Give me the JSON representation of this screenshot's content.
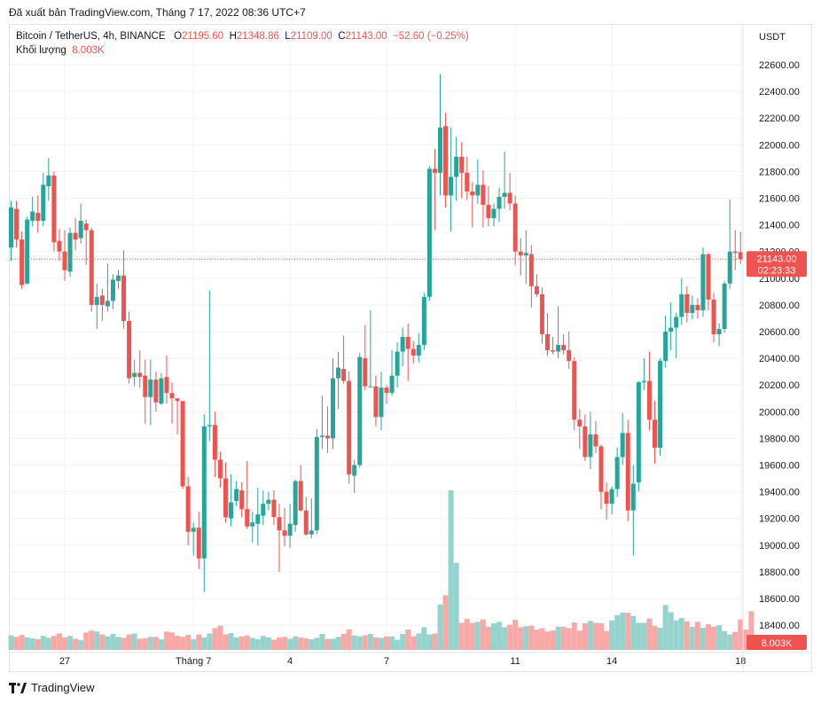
{
  "header": {
    "export_text": "Đã xuất bản TradingView.com, Tháng 7 17, 2022 08:36 UTC+7"
  },
  "legend": {
    "symbol": "Bitcoin / TetherUS, 4h, BINANCE",
    "o_label": "O",
    "o_value": "21195.60",
    "h_label": "H",
    "h_value": "21348.86",
    "l_label": "L",
    "l_value": "21109.00",
    "c_label": "C",
    "c_value": "21143.00",
    "change": "−52.60 (−0.25%)",
    "volume_label": "Khối lượng",
    "volume_value": "8.003K"
  },
  "footer": {
    "brand": "TradingView",
    "logo": "tradingview-logo-icon"
  },
  "colors": {
    "up": "#26a69a",
    "down": "#ef5350",
    "up_volume": "#97d3cd",
    "down_volume": "#f7a9a7",
    "grid": "#f0f3fa",
    "axis_text": "#131722",
    "price_label_bg": "#ef5350"
  },
  "chart_data": {
    "type": "candlestick",
    "symbol": "BTCUSDT",
    "interval": "4h",
    "currency": "USDT",
    "y_ticks": [
      "22600.00",
      "22400.00",
      "22200.00",
      "22000.00",
      "21800.00",
      "21600.00",
      "21400.00",
      "21200.00",
      "21000.00",
      "20800.00",
      "20600.00",
      "20400.00",
      "20200.00",
      "20000.00",
      "19800.00",
      "19600.00",
      "19400.00",
      "19200.00",
      "19000.00",
      "18800.00",
      "18600.00",
      "18400.00"
    ],
    "ylim": [
      18250,
      22790
    ],
    "x_ticks": [
      {
        "label": "27",
        "index": 10
      },
      {
        "label": "Tháng 7",
        "index": 34
      },
      {
        "label": "4",
        "index": 52
      },
      {
        "label": "7",
        "index": 70
      },
      {
        "label": "11",
        "index": 94
      },
      {
        "label": "14",
        "index": 112
      },
      {
        "label": "18",
        "index": 136
      }
    ],
    "last_price_label": "21143.00",
    "countdown_label": "02:23:33",
    "volume_label": "8.003K",
    "grid": true,
    "candles": [
      {
        "o": 21230,
        "h": 21580,
        "l": 21130,
        "c": 21530
      },
      {
        "o": 21520,
        "h": 21580,
        "l": 21230,
        "c": 21290
      },
      {
        "o": 21290,
        "h": 21350,
        "l": 20920,
        "c": 20950
      },
      {
        "o": 20960,
        "h": 21460,
        "l": 20950,
        "c": 21440
      },
      {
        "o": 21430,
        "h": 21610,
        "l": 21390,
        "c": 21500
      },
      {
        "o": 21490,
        "h": 21620,
        "l": 21340,
        "c": 21430
      },
      {
        "o": 21430,
        "h": 21790,
        "l": 21390,
        "c": 21700
      },
      {
        "o": 21690,
        "h": 21900,
        "l": 21580,
        "c": 21770
      },
      {
        "o": 21770,
        "h": 21800,
        "l": 21200,
        "c": 21270
      },
      {
        "o": 21280,
        "h": 21370,
        "l": 21130,
        "c": 21200
      },
      {
        "o": 21200,
        "h": 21360,
        "l": 20980,
        "c": 21060
      },
      {
        "o": 21050,
        "h": 21380,
        "l": 21010,
        "c": 21340
      },
      {
        "o": 21340,
        "h": 21450,
        "l": 21210,
        "c": 21290
      },
      {
        "o": 21300,
        "h": 21560,
        "l": 21260,
        "c": 21430
      },
      {
        "o": 21410,
        "h": 21440,
        "l": 21100,
        "c": 21360
      },
      {
        "o": 21360,
        "h": 21380,
        "l": 20750,
        "c": 20800
      },
      {
        "o": 20800,
        "h": 20960,
        "l": 20620,
        "c": 20860
      },
      {
        "o": 20870,
        "h": 20920,
        "l": 20680,
        "c": 20800
      },
      {
        "o": 20790,
        "h": 21110,
        "l": 20750,
        "c": 20830
      },
      {
        "o": 20830,
        "h": 21030,
        "l": 20770,
        "c": 20990
      },
      {
        "o": 20980,
        "h": 21060,
        "l": 20920,
        "c": 21020
      },
      {
        "o": 21020,
        "h": 21210,
        "l": 20620,
        "c": 20680
      },
      {
        "o": 20680,
        "h": 20750,
        "l": 20210,
        "c": 20250
      },
      {
        "o": 20260,
        "h": 20390,
        "l": 20190,
        "c": 20290
      },
      {
        "o": 20290,
        "h": 20460,
        "l": 20180,
        "c": 20260
      },
      {
        "o": 20270,
        "h": 20390,
        "l": 19910,
        "c": 20110
      },
      {
        "o": 20110,
        "h": 20390,
        "l": 19900,
        "c": 20240
      },
      {
        "o": 20240,
        "h": 20300,
        "l": 20000,
        "c": 20070
      },
      {
        "o": 20060,
        "h": 20290,
        "l": 20050,
        "c": 20250
      },
      {
        "o": 20260,
        "h": 20420,
        "l": 20060,
        "c": 20140
      },
      {
        "o": 20140,
        "h": 20220,
        "l": 19910,
        "c": 20100
      },
      {
        "o": 20100,
        "h": 20100,
        "l": 19830,
        "c": 20080
      },
      {
        "o": 20080,
        "h": 20080,
        "l": 19420,
        "c": 19440
      },
      {
        "o": 19440,
        "h": 19510,
        "l": 19000,
        "c": 19100
      },
      {
        "o": 19100,
        "h": 19170,
        "l": 18920,
        "c": 19130
      },
      {
        "o": 19130,
        "h": 19250,
        "l": 18820,
        "c": 18900
      },
      {
        "o": 18900,
        "h": 19980,
        "l": 18650,
        "c": 19890
      },
      {
        "o": 19890,
        "h": 20910,
        "l": 19780,
        "c": 19900
      },
      {
        "o": 19900,
        "h": 20000,
        "l": 19510,
        "c": 19640
      },
      {
        "o": 19640,
        "h": 19700,
        "l": 19430,
        "c": 19500
      },
      {
        "o": 19500,
        "h": 19620,
        "l": 19170,
        "c": 19210
      },
      {
        "o": 19200,
        "h": 19530,
        "l": 19140,
        "c": 19320
      },
      {
        "o": 19330,
        "h": 19480,
        "l": 19290,
        "c": 19420
      },
      {
        "o": 19410,
        "h": 19470,
        "l": 19210,
        "c": 19270
      },
      {
        "o": 19270,
        "h": 19630,
        "l": 19120,
        "c": 19140
      },
      {
        "o": 19140,
        "h": 19250,
        "l": 19020,
        "c": 19170
      },
      {
        "o": 19160,
        "h": 19430,
        "l": 19000,
        "c": 19230
      },
      {
        "o": 19220,
        "h": 19410,
        "l": 19150,
        "c": 19310
      },
      {
        "o": 19310,
        "h": 19400,
        "l": 19260,
        "c": 19340
      },
      {
        "o": 19340,
        "h": 19410,
        "l": 19150,
        "c": 19210
      },
      {
        "o": 19210,
        "h": 19310,
        "l": 18800,
        "c": 19110
      },
      {
        "o": 19110,
        "h": 19280,
        "l": 18990,
        "c": 19070
      },
      {
        "o": 19070,
        "h": 19310,
        "l": 18980,
        "c": 19160
      },
      {
        "o": 19150,
        "h": 19490,
        "l": 19100,
        "c": 19480
      },
      {
        "o": 19480,
        "h": 19600,
        "l": 19250,
        "c": 19260
      },
      {
        "o": 19260,
        "h": 19360,
        "l": 19070,
        "c": 19080
      },
      {
        "o": 19080,
        "h": 19350,
        "l": 19050,
        "c": 19110
      },
      {
        "o": 19110,
        "h": 19870,
        "l": 19080,
        "c": 19810
      },
      {
        "o": 19810,
        "h": 20120,
        "l": 19720,
        "c": 19820
      },
      {
        "o": 19820,
        "h": 20040,
        "l": 19690,
        "c": 19800
      },
      {
        "o": 19800,
        "h": 20400,
        "l": 19720,
        "c": 20250
      },
      {
        "o": 20250,
        "h": 20450,
        "l": 20020,
        "c": 20330
      },
      {
        "o": 20320,
        "h": 20570,
        "l": 20210,
        "c": 20230
      },
      {
        "o": 20230,
        "h": 20300,
        "l": 19460,
        "c": 19530
      },
      {
        "o": 19520,
        "h": 19640,
        "l": 19390,
        "c": 19600
      },
      {
        "o": 19600,
        "h": 20440,
        "l": 19580,
        "c": 20410
      },
      {
        "o": 20400,
        "h": 20650,
        "l": 20160,
        "c": 20190
      },
      {
        "o": 20190,
        "h": 20760,
        "l": 20180,
        "c": 20190
      },
      {
        "o": 20190,
        "h": 20270,
        "l": 19890,
        "c": 19960
      },
      {
        "o": 19960,
        "h": 20300,
        "l": 19860,
        "c": 20180
      },
      {
        "o": 20180,
        "h": 20200,
        "l": 20060,
        "c": 20140
      },
      {
        "o": 20140,
        "h": 20460,
        "l": 20120,
        "c": 20270
      },
      {
        "o": 20270,
        "h": 20520,
        "l": 20180,
        "c": 20450
      },
      {
        "o": 20450,
        "h": 20630,
        "l": 20340,
        "c": 20560
      },
      {
        "o": 20560,
        "h": 20660,
        "l": 20230,
        "c": 20470
      },
      {
        "o": 20470,
        "h": 20530,
        "l": 20360,
        "c": 20420
      },
      {
        "o": 20420,
        "h": 20590,
        "l": 20370,
        "c": 20500
      },
      {
        "o": 20500,
        "h": 20890,
        "l": 20460,
        "c": 20860
      },
      {
        "o": 20860,
        "h": 21840,
        "l": 20830,
        "c": 21820
      },
      {
        "o": 21820,
        "h": 21970,
        "l": 21360,
        "c": 21790
      },
      {
        "o": 21790,
        "h": 22530,
        "l": 21620,
        "c": 22130
      },
      {
        "o": 22140,
        "h": 22240,
        "l": 21530,
        "c": 21620
      },
      {
        "o": 21620,
        "h": 22130,
        "l": 21350,
        "c": 21760
      },
      {
        "o": 21760,
        "h": 22060,
        "l": 21580,
        "c": 21910
      },
      {
        "o": 21910,
        "h": 22020,
        "l": 21600,
        "c": 21790
      },
      {
        "o": 21790,
        "h": 21910,
        "l": 21590,
        "c": 21650
      },
      {
        "o": 21650,
        "h": 21720,
        "l": 21380,
        "c": 21620
      },
      {
        "o": 21620,
        "h": 21890,
        "l": 21560,
        "c": 21700
      },
      {
        "o": 21700,
        "h": 21810,
        "l": 21380,
        "c": 21550
      },
      {
        "o": 21550,
        "h": 21690,
        "l": 21390,
        "c": 21450
      },
      {
        "o": 21450,
        "h": 21560,
        "l": 21390,
        "c": 21520
      },
      {
        "o": 21520,
        "h": 21680,
        "l": 21420,
        "c": 21610
      },
      {
        "o": 21610,
        "h": 21950,
        "l": 21520,
        "c": 21640
      },
      {
        "o": 21640,
        "h": 21790,
        "l": 21510,
        "c": 21560
      },
      {
        "o": 21560,
        "h": 21620,
        "l": 21100,
        "c": 21200
      },
      {
        "o": 21200,
        "h": 21300,
        "l": 21020,
        "c": 21170
      },
      {
        "o": 21170,
        "h": 21360,
        "l": 20960,
        "c": 21190
      },
      {
        "o": 21180,
        "h": 21250,
        "l": 20780,
        "c": 20940
      },
      {
        "o": 20940,
        "h": 21030,
        "l": 20860,
        "c": 20880
      },
      {
        "o": 20880,
        "h": 20930,
        "l": 20510,
        "c": 20580
      },
      {
        "o": 20580,
        "h": 20740,
        "l": 20420,
        "c": 20460
      },
      {
        "o": 20460,
        "h": 20560,
        "l": 20430,
        "c": 20450
      },
      {
        "o": 20450,
        "h": 20790,
        "l": 20400,
        "c": 20500
      },
      {
        "o": 20500,
        "h": 20580,
        "l": 20430,
        "c": 20460
      },
      {
        "o": 20460,
        "h": 20600,
        "l": 20320,
        "c": 20380
      },
      {
        "o": 20380,
        "h": 20410,
        "l": 19860,
        "c": 19940
      },
      {
        "o": 19940,
        "h": 20020,
        "l": 19720,
        "c": 19890
      },
      {
        "o": 19890,
        "h": 19980,
        "l": 19630,
        "c": 19660
      },
      {
        "o": 19660,
        "h": 20000,
        "l": 19570,
        "c": 19830
      },
      {
        "o": 19830,
        "h": 19930,
        "l": 19690,
        "c": 19740
      },
      {
        "o": 19740,
        "h": 19750,
        "l": 19270,
        "c": 19400
      },
      {
        "o": 19400,
        "h": 19470,
        "l": 19190,
        "c": 19310
      },
      {
        "o": 19310,
        "h": 19440,
        "l": 19230,
        "c": 19420
      },
      {
        "o": 19420,
        "h": 19730,
        "l": 19360,
        "c": 19660
      },
      {
        "o": 19660,
        "h": 19990,
        "l": 19600,
        "c": 19840
      },
      {
        "o": 19840,
        "h": 19940,
        "l": 19180,
        "c": 19260
      },
      {
        "o": 19260,
        "h": 19600,
        "l": 18920,
        "c": 19460
      },
      {
        "o": 19470,
        "h": 20230,
        "l": 19400,
        "c": 20220
      },
      {
        "o": 20220,
        "h": 20400,
        "l": 20160,
        "c": 20230
      },
      {
        "o": 20230,
        "h": 20450,
        "l": 19860,
        "c": 19940
      },
      {
        "o": 19940,
        "h": 20080,
        "l": 19610,
        "c": 19730
      },
      {
        "o": 19730,
        "h": 20400,
        "l": 19670,
        "c": 20380
      },
      {
        "o": 20380,
        "h": 20720,
        "l": 20330,
        "c": 20600
      },
      {
        "o": 20600,
        "h": 20820,
        "l": 20460,
        "c": 20630
      },
      {
        "o": 20630,
        "h": 20740,
        "l": 20400,
        "c": 20710
      },
      {
        "o": 20710,
        "h": 21000,
        "l": 20650,
        "c": 20880
      },
      {
        "o": 20880,
        "h": 20940,
        "l": 20670,
        "c": 20740
      },
      {
        "o": 20740,
        "h": 20870,
        "l": 20690,
        "c": 20800
      },
      {
        "o": 20800,
        "h": 20850,
        "l": 20700,
        "c": 20760
      },
      {
        "o": 20760,
        "h": 21230,
        "l": 20710,
        "c": 21180
      },
      {
        "o": 21180,
        "h": 21190,
        "l": 20760,
        "c": 20840
      },
      {
        "o": 20840,
        "h": 20890,
        "l": 20520,
        "c": 20580
      },
      {
        "o": 20580,
        "h": 20660,
        "l": 20490,
        "c": 20620
      },
      {
        "o": 20620,
        "h": 20980,
        "l": 20590,
        "c": 20960
      },
      {
        "o": 20960,
        "h": 21590,
        "l": 20920,
        "c": 21200
      },
      {
        "o": 21200,
        "h": 21360,
        "l": 21060,
        "c": 21190
      },
      {
        "o": 21195.6,
        "h": 21348.86,
        "l": 21109,
        "c": 21143
      }
    ],
    "volumes": [
      3.0,
      2.7,
      3.1,
      2.6,
      2.4,
      2.2,
      2.9,
      2.5,
      2.9,
      3.4,
      2.6,
      2.9,
      2.3,
      2.0,
      3.6,
      4.0,
      3.8,
      3.2,
      2.8,
      3.3,
      2.7,
      2.5,
      3.2,
      3.4,
      2.3,
      2.4,
      2.7,
      2.7,
      2.2,
      3.8,
      3.6,
      2.9,
      2.7,
      3.1,
      2.2,
      3.2,
      2.6,
      3.4,
      4.5,
      5.0,
      3.2,
      3.5,
      2.6,
      2.8,
      3.0,
      2.5,
      2.2,
      2.9,
      2.6,
      2.1,
      2.6,
      2.7,
      2.3,
      2.8,
      2.6,
      2.4,
      2.2,
      2.5,
      3.3,
      2.3,
      2.3,
      2.7,
      3.3,
      4.2,
      3.0,
      2.8,
      3.0,
      3.3,
      2.6,
      2.5,
      2.8,
      2.8,
      2.1,
      3.3,
      4.2,
      2.8,
      3.4,
      4.7,
      3.2,
      3.4,
      9.4,
      11.3,
      33.0,
      18.0,
      5.6,
      6.4,
      5.6,
      5.8,
      6.3,
      4.8,
      5.5,
      5.8,
      4.7,
      5.2,
      6.2,
      4.7,
      4.9,
      5.0,
      4.2,
      4.5,
      3.8,
      4.0,
      4.8,
      4.8,
      4.5,
      5.7,
      4.0,
      5.5,
      6.0,
      5.6,
      5.5,
      3.9,
      6.1,
      7.2,
      7.7,
      7.7,
      7.0,
      5.6,
      5.6,
      6.5,
      5.0,
      4.6,
      9.3,
      7.8,
      6.1,
      6.6,
      5.9,
      4.8,
      5.8,
      4.6,
      5.3,
      4.8,
      5.1,
      3.9,
      3.2,
      3.7,
      6.3,
      4.2,
      8.0
    ]
  }
}
